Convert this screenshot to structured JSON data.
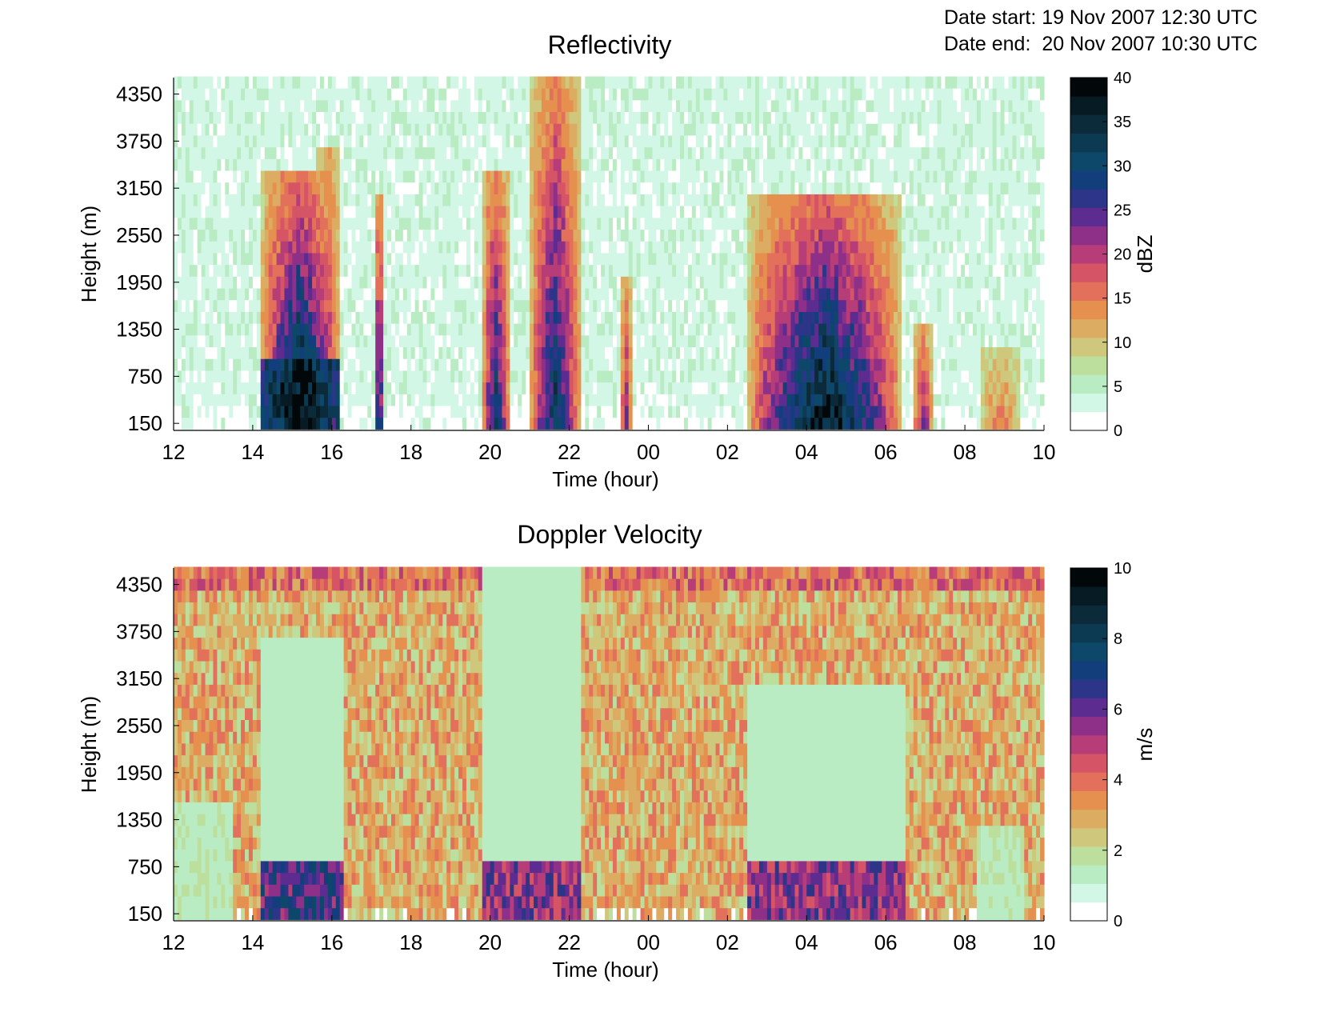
{
  "header": {
    "date_start_label": "Date start:",
    "date_start_value": "19 Nov 2007 12:30 UTC",
    "date_end_label": "Date end:",
    "date_end_value": "20 Nov 2007 10:30 UTC"
  },
  "colormap": [
    "#ffffff",
    "#d3f7e7",
    "#b9ecc3",
    "#bddf9e",
    "#cfc87c",
    "#dcac62",
    "#e6904f",
    "#e2705a",
    "#d55465",
    "#b63d77",
    "#8e3088",
    "#5c2c90",
    "#2d3588",
    "#123f7c",
    "#0d4769",
    "#0c3a52",
    "#0b2a3a",
    "#071b24",
    "#020809"
  ],
  "chart_data": [
    {
      "type": "heatmap",
      "title": "Reflectivity",
      "xlabel": "Time (hour)",
      "ylabel": "Height (m)",
      "x_tick_labels": [
        "12",
        "14",
        "16",
        "18",
        "20",
        "22",
        "00",
        "02",
        "04",
        "06",
        "08",
        "10"
      ],
      "x_range_hours_from_12utc": [
        0,
        22
      ],
      "y_ticks": [
        150,
        750,
        1350,
        1950,
        2550,
        3150,
        3750,
        4350
      ],
      "ylim": [
        60,
        4560
      ],
      "colorbar": {
        "label": "dBZ",
        "range": [
          0,
          40
        ],
        "ticks": [
          0,
          5,
          10,
          15,
          20,
          25,
          30,
          35,
          40
        ]
      },
      "background_value": 4,
      "features": [
        {
          "t_start": 2.2,
          "t_end": 4.2,
          "z_top": 3300,
          "peak": 42,
          "core_top": 1000,
          "note": "14-16 UTC band"
        },
        {
          "t_start": 3.6,
          "t_end": 4.2,
          "z_top": 3700,
          "peak": 24
        },
        {
          "t_start": 5.1,
          "t_end": 5.3,
          "z_top": 3000,
          "peak": 38
        },
        {
          "t_start": 7.8,
          "t_end": 8.5,
          "z_top": 3400,
          "peak": 34
        },
        {
          "t_start": 9.0,
          "t_end": 10.3,
          "z_top": 4500,
          "peak": 34
        },
        {
          "t_start": 11.3,
          "t_end": 11.6,
          "z_top": 2000,
          "peak": 26
        },
        {
          "t_start": 14.5,
          "t_end": 18.4,
          "z_top": 3100,
          "peak": 42,
          "note": "04-06 UTC band"
        },
        {
          "t_start": 18.7,
          "t_end": 19.2,
          "z_top": 1400,
          "peak": 26
        },
        {
          "t_start": 20.4,
          "t_end": 21.4,
          "z_top": 1100,
          "peak": 16
        }
      ]
    },
    {
      "type": "heatmap",
      "title": "Doppler Velocity",
      "xlabel": "Time (hour)",
      "ylabel": "Height (m)",
      "x_tick_labels": [
        "12",
        "14",
        "16",
        "18",
        "20",
        "22",
        "00",
        "02",
        "04",
        "06",
        "08",
        "10"
      ],
      "x_range_hours_from_12utc": [
        0,
        22
      ],
      "y_ticks": [
        150,
        750,
        1350,
        1950,
        2550,
        3150,
        3750,
        4350
      ],
      "ylim": [
        60,
        4560
      ],
      "colorbar": {
        "label": "m/s",
        "range": [
          0,
          10
        ],
        "ticks": [
          0,
          2,
          4,
          6,
          8,
          10
        ]
      },
      "background_value": 3.2,
      "features": [
        {
          "t_start": 2.2,
          "t_end": 4.3,
          "z_top": 3600,
          "value": 1.4,
          "low_level_value": 7.5
        },
        {
          "t_start": 7.8,
          "t_end": 10.3,
          "z_top": 4500,
          "value": 1.4,
          "low_level_value": 6.5
        },
        {
          "t_start": 14.5,
          "t_end": 18.5,
          "z_top": 3000,
          "value": 1.4,
          "low_level_value": 6.5
        },
        {
          "t_start": 0.0,
          "t_end": 1.5,
          "z_top": 1500,
          "value": 1.6
        },
        {
          "t_start": 20.3,
          "t_end": 21.5,
          "z_top": 1200,
          "value": 1.6
        }
      ]
    }
  ]
}
